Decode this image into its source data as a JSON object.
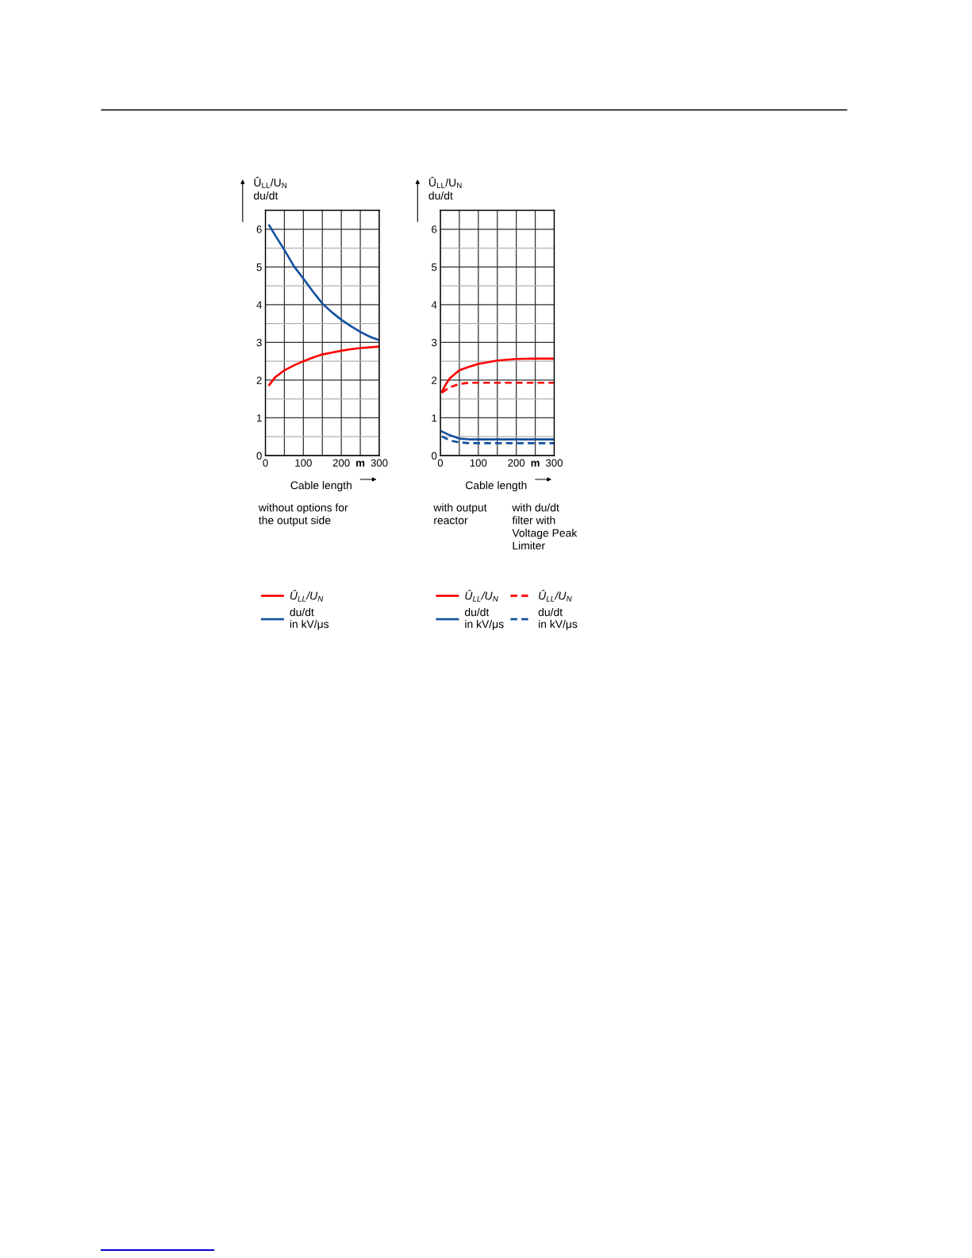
{
  "chart_data": [
    {
      "type": "line",
      "ylabel": "Û$_{LL}$/U$_{N}$\ndu/dt",
      "xlabel": "Cable length",
      "xlim": [
        0,
        300
      ],
      "ylim": [
        0,
        6.5
      ],
      "xticks": [
        0,
        {
          "value": 50,
          "label": null
        },
        100,
        {
          "value": 150,
          "label": null
        },
        200,
        {
          "value": 250,
          "label": "m"
        },
        300
      ],
      "yticks": [
        0,
        {
          "value": 0.5,
          "label": null
        },
        1,
        {
          "value": 1.5,
          "label": null
        },
        2,
        {
          "value": 2.5,
          "label": null
        },
        3,
        {
          "value": 3.5,
          "label": null
        },
        4,
        {
          "value": 4.5,
          "label": null
        },
        5,
        {
          "value": 5.5,
          "label": null
        },
        6
      ],
      "grid": true,
      "legend": "bottom",
      "annotations": [
        "without options for\nthe output side"
      ],
      "series": [
        {
          "name": "Û$_{LL}$/U$_{N}$",
          "color": "#ff0000",
          "line_style": "solid",
          "x": [
            10,
            25,
            50,
            75,
            100,
            125,
            150,
            175,
            200,
            225,
            250,
            275,
            300
          ],
          "values": [
            1.87,
            2.07,
            2.26,
            2.39,
            2.5,
            2.6,
            2.68,
            2.73,
            2.78,
            2.82,
            2.85,
            2.87,
            2.89
          ]
        },
        {
          "name": "du/dt\nin kV/μs",
          "color": "#1450a0",
          "line_style": "solid",
          "x": [
            10,
            25,
            50,
            75,
            100,
            125,
            150,
            175,
            200,
            225,
            250,
            275,
            300
          ],
          "values": [
            6.1,
            5.85,
            5.45,
            5.02,
            4.69,
            4.35,
            4.03,
            3.8,
            3.6,
            3.43,
            3.28,
            3.15,
            3.06
          ]
        }
      ]
    },
    {
      "type": "line",
      "ylabel": "Û$_{LL}$/U$_{N}$\ndu/dt",
      "xlabel": "Cable length",
      "xlim": [
        0,
        300
      ],
      "ylim": [
        0,
        6.5
      ],
      "xticks": [
        0,
        {
          "value": 50,
          "label": null
        },
        100,
        {
          "value": 150,
          "label": null
        },
        200,
        {
          "value": 250,
          "label": "m"
        },
        300
      ],
      "yticks": [
        0,
        {
          "value": 0.5,
          "label": null
        },
        1,
        {
          "value": 1.5,
          "label": null
        },
        2,
        {
          "value": 2.5,
          "label": null
        },
        3,
        {
          "value": 3.5,
          "label": null
        },
        4,
        {
          "value": 4.5,
          "label": null
        },
        5,
        {
          "value": 5.5,
          "label": null
        },
        6
      ],
      "grid": true,
      "legend": "bottom",
      "annotations": [
        "with output\nreactor",
        "with du/dt\nfilter with\nVoltage Peak\nLimiter"
      ],
      "series": [
        {
          "name": "Û$_{LL}$/U$_{N}$",
          "color": "#ff0000",
          "line_style": "solid",
          "x": [
            4,
            15,
            25,
            50,
            75,
            100,
            150,
            200,
            250,
            300
          ],
          "values": [
            1.69,
            1.9,
            2.05,
            2.26,
            2.35,
            2.43,
            2.52,
            2.56,
            2.57,
            2.57
          ]
        },
        {
          "name": "du/dt\nin kV/μs",
          "color": "#1450a0",
          "line_style": "solid",
          "x": [
            4,
            25,
            50,
            75,
            100,
            150,
            200,
            250,
            300
          ],
          "values": [
            0.64,
            0.54,
            0.45,
            0.43,
            0.43,
            0.43,
            0.43,
            0.43,
            0.43
          ]
        },
        {
          "name": "Û$_{LL}$/U$_{N}$",
          "color": "#ff0000",
          "line_style": "dashed",
          "x": [
            4,
            25,
            50,
            75,
            100,
            150,
            200,
            250,
            300
          ],
          "values": [
            1.67,
            1.81,
            1.9,
            1.93,
            1.93,
            1.93,
            1.93,
            1.93,
            1.93
          ]
        },
        {
          "name": "du/dt\nin kV/μs",
          "color": "#1450a0",
          "line_style": "dashed",
          "x": [
            4,
            25,
            50,
            75,
            100,
            150,
            200,
            250,
            300
          ],
          "values": [
            0.51,
            0.4,
            0.35,
            0.33,
            0.33,
            0.33,
            0.33,
            0.33,
            0.33
          ]
        }
      ]
    }
  ]
}
